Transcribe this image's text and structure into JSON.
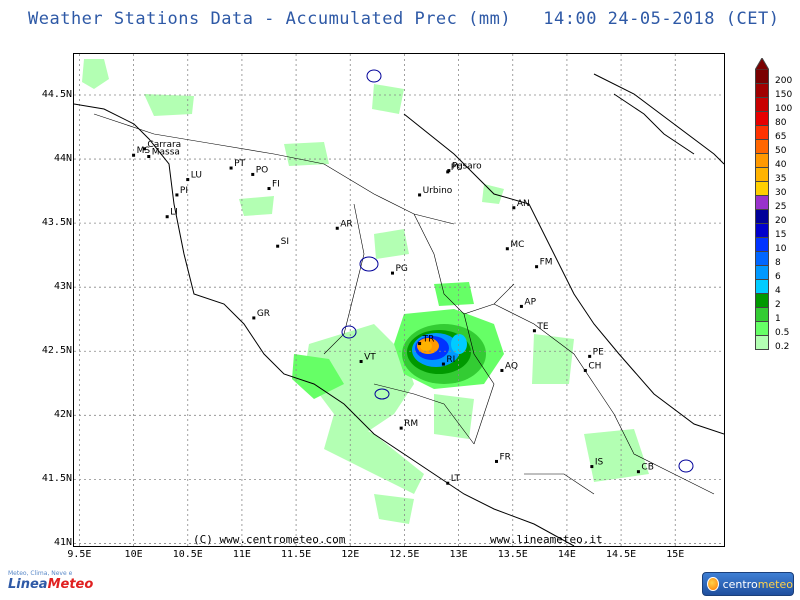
{
  "title": "Weather Stations Data - Accumulated Prec (mm)   14:00 24-05-2018 (CET)",
  "y_labels": [
    "44.5N",
    "44N",
    "43.5N",
    "43N",
    "42.5N",
    "42N",
    "41.5N",
    "41N"
  ],
  "x_labels": [
    "9.5E",
    "10E",
    "10.5E",
    "11E",
    "11.5E",
    "12E",
    "12.5E",
    "13E",
    "13.5E",
    "14E",
    "14.5E",
    "15E"
  ],
  "cities": [
    {
      "name": "MS",
      "lon": 10.0,
      "lat": 44.03
    },
    {
      "name": "Carrara",
      "lon": 10.1,
      "lat": 44.08
    },
    {
      "name": "Massa",
      "lon": 10.14,
      "lat": 44.02
    },
    {
      "name": "LU",
      "lon": 10.5,
      "lat": 43.84
    },
    {
      "name": "PT",
      "lon": 10.9,
      "lat": 43.93
    },
    {
      "name": "PO",
      "lon": 11.1,
      "lat": 43.88
    },
    {
      "name": "FI",
      "lon": 11.25,
      "lat": 43.77
    },
    {
      "name": "PI",
      "lon": 10.4,
      "lat": 43.72
    },
    {
      "name": "LI",
      "lon": 10.31,
      "lat": 43.55
    },
    {
      "name": "SI",
      "lon": 11.33,
      "lat": 43.32
    },
    {
      "name": "AR",
      "lon": 11.88,
      "lat": 43.46
    },
    {
      "name": "PU",
      "lon": 12.9,
      "lat": 43.9
    },
    {
      "name": "Pesaro",
      "lon": 12.91,
      "lat": 43.91
    },
    {
      "name": "Urbino",
      "lon": 12.64,
      "lat": 43.72
    },
    {
      "name": "AN",
      "lon": 13.51,
      "lat": 43.62
    },
    {
      "name": "MC",
      "lon": 13.45,
      "lat": 43.3
    },
    {
      "name": "FM",
      "lon": 13.72,
      "lat": 43.16
    },
    {
      "name": "PG",
      "lon": 12.39,
      "lat": 43.11
    },
    {
      "name": "AP",
      "lon": 13.58,
      "lat": 42.85
    },
    {
      "name": "GR",
      "lon": 11.11,
      "lat": 42.76
    },
    {
      "name": "TE",
      "lon": 13.7,
      "lat": 42.66
    },
    {
      "name": "TR",
      "lon": 12.64,
      "lat": 42.56
    },
    {
      "name": "PE",
      "lon": 14.21,
      "lat": 42.46
    },
    {
      "name": "VT",
      "lon": 12.1,
      "lat": 42.42
    },
    {
      "name": "RI",
      "lon": 12.86,
      "lat": 42.4
    },
    {
      "name": "AQ",
      "lon": 13.4,
      "lat": 42.35
    },
    {
      "name": "CH",
      "lon": 14.17,
      "lat": 42.35
    },
    {
      "name": "RM",
      "lon": 12.47,
      "lat": 41.9
    },
    {
      "name": "FR",
      "lon": 13.35,
      "lat": 41.64
    },
    {
      "name": "IS",
      "lon": 14.23,
      "lat": 41.6
    },
    {
      "name": "CB",
      "lon": 14.66,
      "lat": 41.56
    },
    {
      "name": "LT",
      "lon": 12.9,
      "lat": 41.47
    }
  ],
  "credits": {
    "left": "(C) www.centrometeo.com",
    "right": "www.lineameteo.it"
  },
  "colorbar": {
    "labels": [
      "200",
      "150",
      "100",
      "80",
      "65",
      "50",
      "40",
      "35",
      "30",
      "25",
      "20",
      "15",
      "10",
      "8",
      "6",
      "4",
      "2",
      "1",
      "0.5",
      "0.2"
    ],
    "colors": [
      "#7a0000",
      "#a00000",
      "#c80000",
      "#e60000",
      "#ff3300",
      "#ff6600",
      "#ff9900",
      "#ffb300",
      "#ffd000",
      "#9933cc",
      "#000099",
      "#0000cc",
      "#0033ff",
      "#0066ff",
      "#0099ff",
      "#00ccff",
      "#009900",
      "#33cc33",
      "#66ff66",
      "#b3ffb3"
    ]
  },
  "logos": {
    "left_mini": "Meteo, Clima, Neve e",
    "left_a": "Linea",
    "left_b": "Meteo",
    "right_a": "centro",
    "right_b": "meteo"
  }
}
